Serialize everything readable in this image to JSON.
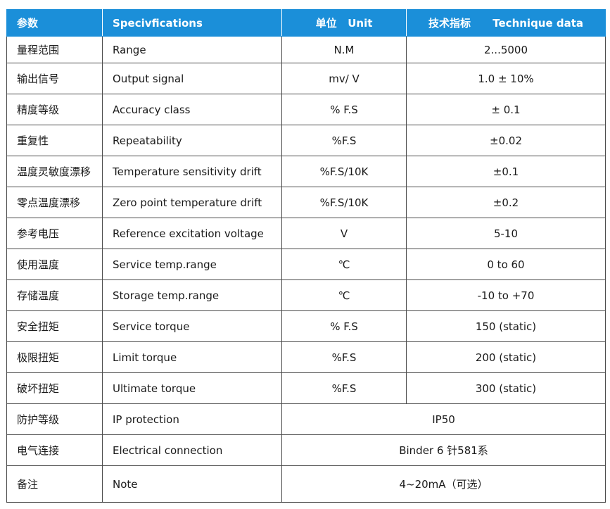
{
  "table": {
    "header": [
      "参数",
      "Specivfications",
      "单位   Unit",
      "技术指标      Technique data"
    ],
    "rows": [
      [
        "量程范围",
        "Range",
        "N.M",
        "2...5000"
      ],
      [
        "输出信号",
        "Output signal",
        "mv/ V",
        "1.0 ± 10%"
      ],
      [
        "精度等级",
        "Accuracy class",
        "% F.S",
        "± 0.1"
      ],
      [
        "重复性",
        "Repeatability",
        "%F.S",
        "±0.02"
      ],
      [
        "温度灵敏度漂移",
        "Temperature sensitivity drift",
        "%F.S/10K",
        "±0.1"
      ],
      [
        "零点温度漂移",
        "Zero point temperature drift",
        "%F.S/10K",
        "±0.2"
      ],
      [
        "参考电压",
        "Reference excitation voltage",
        "V",
        "5-10"
      ],
      [
        "使用温度",
        "Service temp.range",
        "℃",
        "0 to 60"
      ],
      [
        "存储温度",
        "Storage temp.range",
        "℃",
        "-10 to +70"
      ],
      [
        "安全扭矩",
        "Service torque",
        "% F.S",
        "150 (static)"
      ],
      [
        "极限扭矩",
        "Limit torque",
        "%F.S",
        "200 (static)"
      ],
      [
        "破坏扭矩",
        "Ultimate torque",
        "%F.S",
        "300 (static)"
      ],
      [
        "防护等级",
        "IP protection",
        "IP50"
      ],
      [
        "电气连接",
        "Electrical connection",
        "Binder 6 针581系"
      ],
      [
        "备注",
        "Note",
        "4~20mA（可选）"
      ]
    ]
  }
}
